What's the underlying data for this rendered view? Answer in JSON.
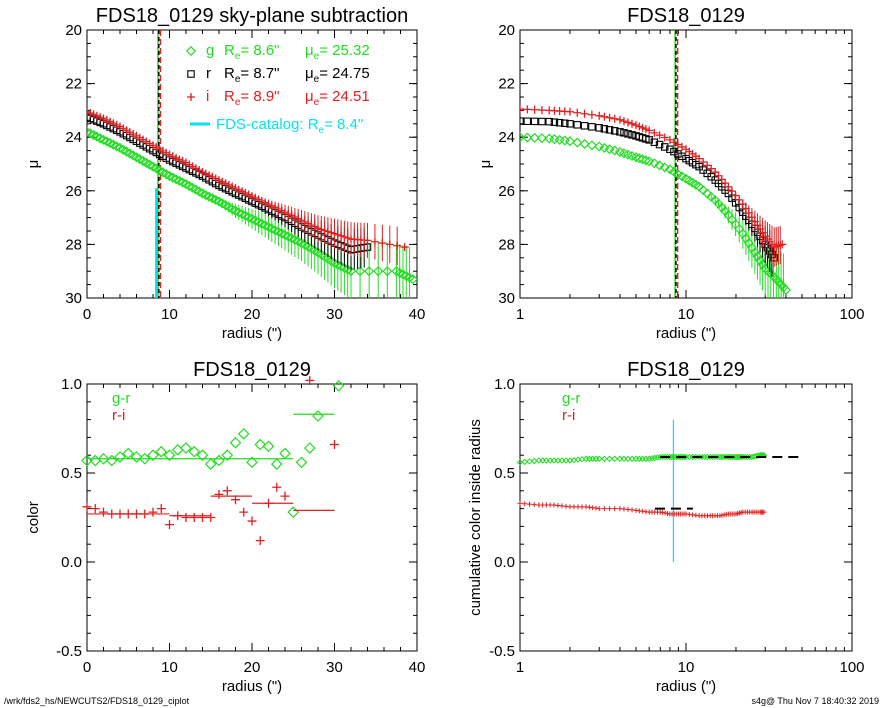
{
  "footer": {
    "left": "/wrk/fds2_hs/NEWCUTS2/FDS18_0129_ciplot",
    "right": "s4g@  Thu Nov  7 18:40:32 2019"
  },
  "colors": {
    "g": "#22dd22",
    "r": "#000000",
    "i": "#e02020",
    "cyan": "#00e5ee"
  },
  "chart_data": [
    {
      "type": "scatter",
      "title": "FDS18_0129 sky-plane subtraction",
      "xlabel": "radius (\")",
      "ylabel": "μ",
      "xlim": [
        0,
        40
      ],
      "ylim": [
        30,
        20
      ],
      "xticks": [
        "0",
        "10",
        "20",
        "30",
        "40"
      ],
      "yticks": [
        "20",
        "22",
        "24",
        "26",
        "28",
        "30"
      ],
      "legend": [
        {
          "band": "g",
          "re_label": "R",
          "re_sub": "e",
          "re_value": "=  8.6\"",
          "mu_label": "μ",
          "mu_sub": "e",
          "mu_value": "= 25.32"
        },
        {
          "band": "r",
          "re_label": "R",
          "re_sub": "e",
          "re_value": "=  8.7\"",
          "mu_label": "μ",
          "mu_sub": "e",
          "mu_value": "= 24.75"
        },
        {
          "band": "i",
          "re_label": "R",
          "re_sub": "e",
          "re_value": "=  8.9\"",
          "mu_label": "μ",
          "mu_sub": "e",
          "mu_value": "= 24.51"
        }
      ],
      "catalog_label": "FDS-catalog: R",
      "catalog_sub": "e",
      "catalog_value": "=   8.4\"",
      "vlines": {
        "catalog": 8.4,
        "g": 8.6,
        "r": 8.7,
        "i": 8.9
      },
      "series": [
        {
          "name": "g",
          "x": [
            0,
            2,
            4,
            6,
            8,
            10,
            12,
            14,
            16,
            18,
            20,
            22,
            24,
            26,
            28,
            30,
            32,
            37.5,
            39.5
          ],
          "y": [
            23.8,
            24.1,
            24.4,
            24.75,
            25.1,
            25.45,
            25.75,
            26.1,
            26.4,
            26.75,
            27.05,
            27.35,
            27.65,
            27.95,
            28.3,
            28.7,
            29.0,
            29.0,
            29.3
          ]
        },
        {
          "name": "r",
          "x": [
            0,
            2,
            4,
            6,
            8,
            10,
            12,
            14,
            16,
            18,
            20,
            22,
            24,
            26,
            28,
            30,
            32,
            34
          ],
          "y": [
            23.25,
            23.5,
            23.8,
            24.15,
            24.5,
            24.85,
            25.15,
            25.45,
            25.8,
            26.1,
            26.4,
            26.7,
            27.0,
            27.35,
            27.65,
            27.95,
            28.2,
            28.1
          ]
        },
        {
          "name": "i",
          "x": [
            0,
            2,
            4,
            6,
            8,
            10,
            12,
            14,
            16,
            18,
            20,
            22,
            24,
            26,
            28,
            30,
            32,
            34,
            38.5
          ],
          "y": [
            23.05,
            23.3,
            23.6,
            23.95,
            24.3,
            24.65,
            24.95,
            25.3,
            25.6,
            25.9,
            26.2,
            26.5,
            26.8,
            27.1,
            27.4,
            27.6,
            27.8,
            27.85,
            28.1
          ]
        }
      ]
    },
    {
      "type": "scatter",
      "title": "FDS18_0129",
      "xlabel": "radius (\")",
      "ylabel": "μ",
      "xscale": "log",
      "xlim": [
        1,
        100
      ],
      "ylim": [
        30,
        20
      ],
      "xticks": [
        "1",
        "10",
        "100"
      ],
      "yticks": [
        "20",
        "22",
        "24",
        "26",
        "28",
        "30"
      ],
      "vlines": {
        "g": 8.6,
        "r": 8.7,
        "i": 8.9
      },
      "series": [
        {
          "name": "g",
          "x": [
            1,
            1.5,
            2,
            3,
            4,
            5,
            6,
            8,
            10,
            12,
            15,
            18,
            22,
            26,
            30,
            35,
            40
          ],
          "y": [
            24.0,
            24.05,
            24.15,
            24.35,
            24.55,
            24.75,
            24.9,
            25.2,
            25.55,
            25.85,
            26.35,
            26.9,
            27.6,
            28.3,
            28.9,
            29.3,
            29.7
          ]
        },
        {
          "name": "r",
          "x": [
            1,
            1.5,
            2,
            3,
            4,
            5,
            6,
            8,
            10,
            12,
            15,
            18,
            22,
            26,
            30,
            34
          ],
          "y": [
            23.4,
            23.42,
            23.5,
            23.65,
            23.8,
            23.95,
            24.1,
            24.45,
            24.8,
            25.1,
            25.6,
            26.1,
            26.8,
            27.4,
            28.0,
            28.5
          ]
        },
        {
          "name": "i",
          "x": [
            1,
            1.5,
            2,
            3,
            4,
            5,
            6,
            8,
            10,
            12,
            15,
            18,
            22,
            26,
            30,
            34,
            38
          ],
          "y": [
            22.95,
            23.0,
            23.05,
            23.2,
            23.35,
            23.55,
            23.75,
            24.1,
            24.45,
            24.8,
            25.3,
            25.85,
            26.5,
            27.15,
            27.7,
            28.1,
            28.0
          ]
        }
      ]
    },
    {
      "type": "scatter",
      "title": "FDS18_0129",
      "xlabel": "radius (\")",
      "ylabel": "color",
      "xlim": [
        0,
        40
      ],
      "ylim": [
        -0.5,
        1.0
      ],
      "xticks": [
        "0",
        "10",
        "20",
        "30",
        "40"
      ],
      "yticks": [
        "-0.5",
        "0.0",
        "0.5",
        "1.0"
      ],
      "legend": [
        {
          "name": "g-r"
        },
        {
          "name": "r-i"
        }
      ],
      "series": [
        {
          "name": "g-r",
          "x": [
            0,
            1,
            2,
            3,
            4,
            5,
            6,
            7,
            8,
            9,
            10,
            11,
            12,
            13,
            14,
            15,
            16,
            17,
            18,
            19,
            20,
            21,
            22,
            23,
            24,
            25,
            26,
            27,
            28,
            30.5
          ],
          "y": [
            0.57,
            0.57,
            0.58,
            0.57,
            0.59,
            0.61,
            0.59,
            0.58,
            0.6,
            0.62,
            0.6,
            0.63,
            0.64,
            0.62,
            0.6,
            0.55,
            0.57,
            0.6,
            0.67,
            0.72,
            0.56,
            0.66,
            0.65,
            0.55,
            0.61,
            0.28,
            0.56,
            0.64,
            0.82,
            0.99
          ]
        },
        {
          "name": "r-i",
          "x": [
            0,
            1,
            2,
            3,
            4,
            5,
            6,
            7,
            8,
            9,
            10,
            11,
            12,
            13,
            14,
            15,
            16,
            17,
            18,
            19,
            20,
            21,
            22,
            23,
            24,
            27,
            30
          ],
          "y": [
            0.31,
            0.3,
            0.28,
            0.27,
            0.27,
            0.27,
            0.27,
            0.27,
            0.28,
            0.3,
            0.21,
            0.26,
            0.25,
            0.25,
            0.25,
            0.25,
            0.38,
            0.4,
            0.35,
            0.28,
            0.23,
            0.12,
            0.33,
            0.42,
            0.37,
            1.02,
            0.66
          ]
        }
      ],
      "bin_means": [
        {
          "name": "g-r",
          "segments": [
            [
              0,
              10,
              0.58
            ],
            [
              10,
              20,
              0.58
            ],
            [
              20,
              25,
              0.58
            ],
            [
              25,
              30,
              0.83
            ]
          ]
        },
        {
          "name": "r-i",
          "segments": [
            [
              0,
              10,
              0.27
            ],
            [
              10,
              15,
              0.26
            ],
            [
              15,
              20,
              0.37
            ],
            [
              20,
              25,
              0.33
            ],
            [
              25,
              30,
              0.29
            ]
          ]
        }
      ]
    },
    {
      "type": "scatter",
      "title": "FDS18_0129",
      "xlabel": "radius (\")",
      "ylabel": "cumulative color inside radius",
      "xscale": "log",
      "xlim": [
        1,
        100
      ],
      "ylim": [
        -0.5,
        1.0
      ],
      "xticks": [
        "1",
        "10",
        "100"
      ],
      "yticks": [
        "-0.5",
        "0.0",
        "0.5",
        "1.0"
      ],
      "legend": [
        {
          "name": "g-r"
        },
        {
          "name": "r-i"
        }
      ],
      "vline": {
        "x": 8.4,
        "ymin": 0.0,
        "ymax": 0.8
      },
      "series": [
        {
          "name": "g-r",
          "x": [
            1,
            1.3,
            1.6,
            2,
            2.5,
            3,
            4,
            5,
            6,
            7,
            8,
            9,
            10,
            12,
            14,
            16,
            18,
            20,
            22,
            25,
            28,
            30
          ],
          "y": [
            0.56,
            0.57,
            0.57,
            0.57,
            0.58,
            0.58,
            0.58,
            0.58,
            0.58,
            0.59,
            0.59,
            0.59,
            0.59,
            0.59,
            0.59,
            0.59,
            0.59,
            0.59,
            0.59,
            0.59,
            0.6,
            0.6
          ]
        },
        {
          "name": "r-i",
          "x": [
            1,
            1.3,
            1.6,
            2,
            2.5,
            3,
            4,
            5,
            6,
            7,
            8,
            9,
            10,
            12,
            14,
            16,
            18,
            20,
            22,
            25,
            28,
            30
          ],
          "y": [
            0.33,
            0.32,
            0.32,
            0.31,
            0.31,
            0.3,
            0.3,
            0.29,
            0.28,
            0.28,
            0.27,
            0.27,
            0.27,
            0.26,
            0.26,
            0.26,
            0.27,
            0.27,
            0.28,
            0.28,
            0.28,
            0.28
          ]
        }
      ],
      "ref_segments": [
        {
          "name": "g-r",
          "x": [
            7,
            50
          ],
          "y": 0.59
        },
        {
          "name": "r-i",
          "x": [
            6.5,
            11
          ],
          "y": 0.3
        }
      ]
    }
  ]
}
